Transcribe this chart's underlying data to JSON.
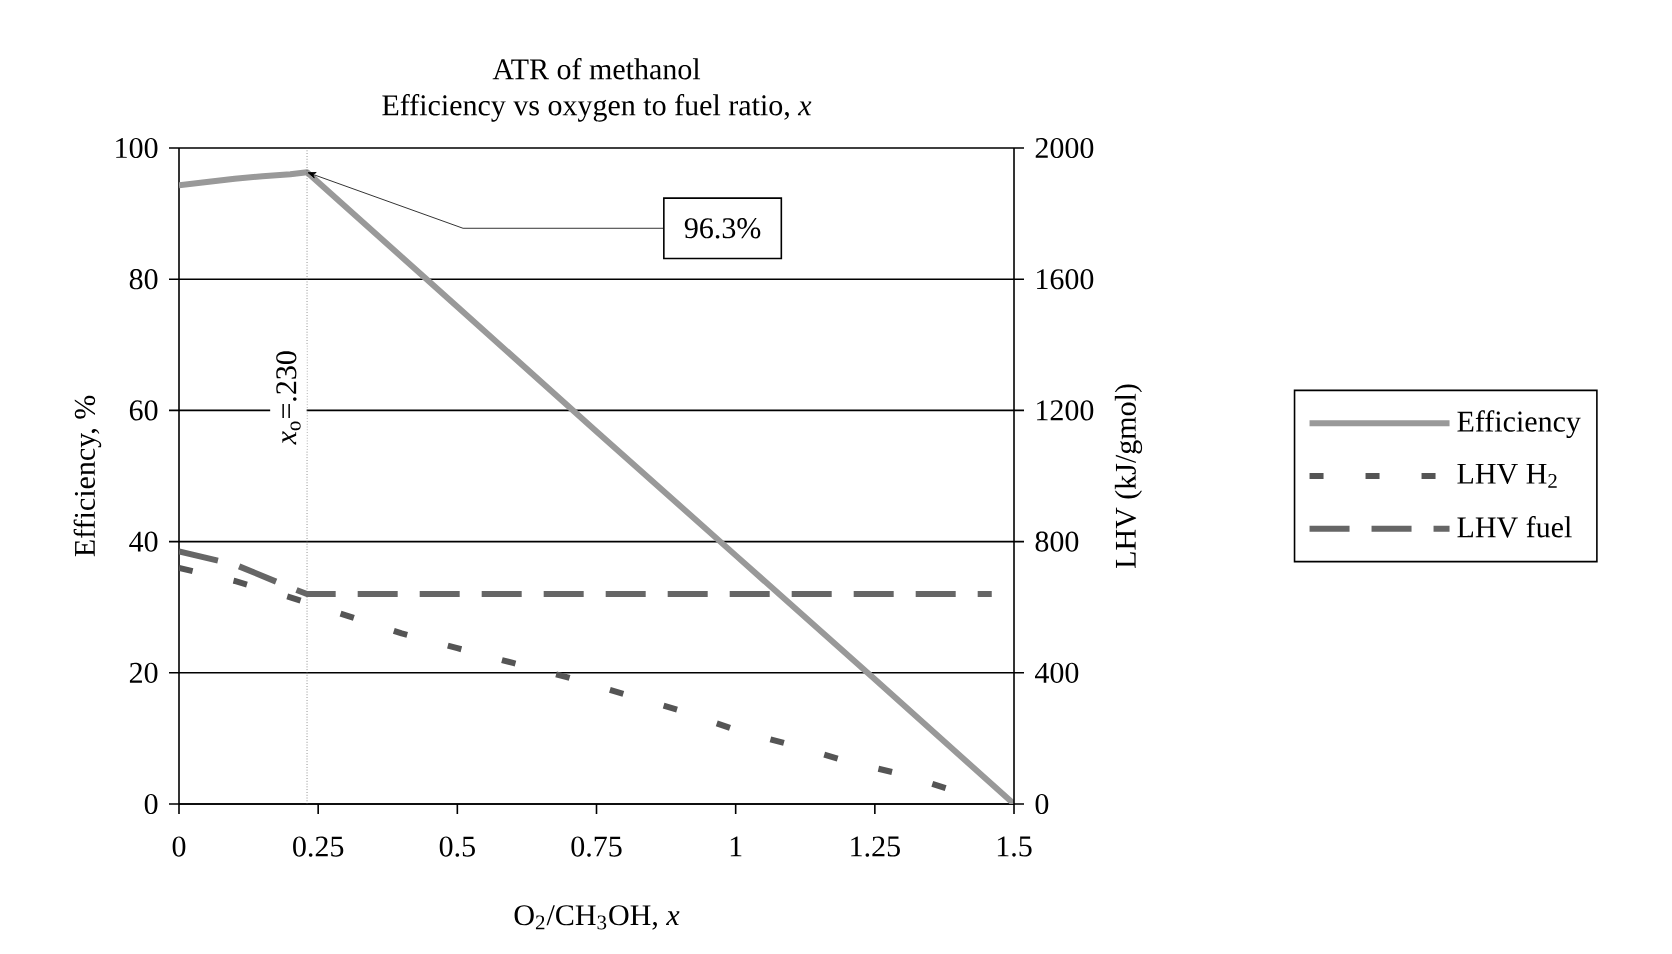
{
  "chart_data": {
    "type": "line",
    "title": "ATR of methanol",
    "subtitle": "Efficiency vs oxygen to fuel ratio, *x*",
    "xlabel": "O$_{2}$/CH$_{3}$OH, *x*",
    "ylabel": "Efficiency, %",
    "y2label": "LHV (kJ/gmol)",
    "series": [
      {
        "name": "Efficiency",
        "color": "#999999",
        "line_style": "solid",
        "x": [
          0,
          0.05,
          0.1,
          0.15,
          0.2,
          0.23,
          0.5,
          0.75,
          1.0,
          1.25,
          1.5
        ],
        "values": [
          94.3,
          94.8,
          95.3,
          95.7,
          96.0,
          96.3,
          75.8,
          56.8,
          37.9,
          19.0,
          0
        ]
      },
      {
        "name": "LHV H$_{2}$",
        "color": "#555555",
        "line_style": "dotted",
        "axis": "y2",
        "x": [
          0,
          0.1,
          0.2,
          0.3,
          0.4,
          0.5,
          0.6,
          0.7,
          0.8,
          0.9,
          1.0,
          1.1,
          1.2,
          1.3,
          1.43
        ],
        "values": [
          720,
          680,
          630,
          575,
          520,
          475,
          430,
          385,
          335,
          285,
          226,
          180,
          130,
          90,
          20
        ]
      },
      {
        "name": "LHV fuel",
        "color": "#666666",
        "line_style": "dashed",
        "axis": "y2",
        "x": [
          0,
          0.1,
          0.2,
          0.23,
          0.5,
          1.0,
          1.46
        ],
        "values": [
          770,
          730,
          660,
          640,
          640,
          640,
          640
        ]
      }
    ],
    "xlim": [
      0,
      1.5
    ],
    "xticks": [
      0,
      0.25,
      0.5,
      0.75,
      1,
      1.25,
      1.5
    ],
    "ylim": [
      0,
      100
    ],
    "yticks": [
      0,
      20,
      40,
      60,
      80,
      100
    ],
    "y2lim": [
      0,
      2000
    ],
    "y2ticks": [
      0,
      400,
      800,
      1200,
      1600,
      2000
    ],
    "ref_lines": [
      {
        "axis": "x",
        "value": 0.23,
        "label": "*x*$_{o}$=.230",
        "color": "#555555",
        "line_style": "dotted"
      }
    ],
    "annotations": [
      {
        "text": "96.3%",
        "x": 0.23,
        "y": 96.3
      }
    ],
    "grid": "y",
    "legend": "right"
  }
}
